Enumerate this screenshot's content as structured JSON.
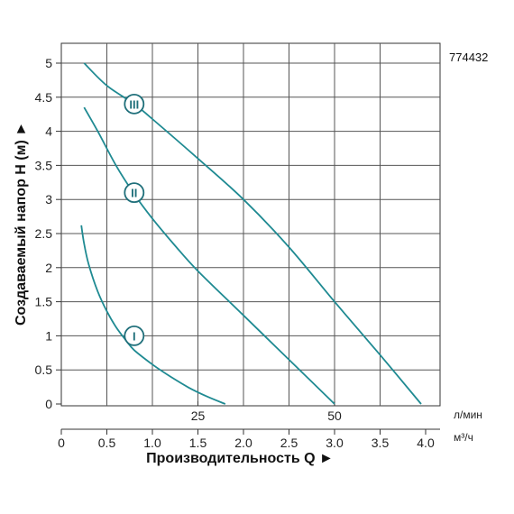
{
  "model_code": "774432",
  "chart_data": {
    "type": "line",
    "xlabel": "Производительность Q ►",
    "ylabel": "Создаваемый напор H (м) ►",
    "x_unit_primary": "м³/ч",
    "x_unit_secondary": "л/мин",
    "xlim": [
      0,
      4.0
    ],
    "ylim": [
      0,
      5
    ],
    "x_ticks": [
      "0",
      "0.5",
      "1.0",
      "1.5",
      "2.0",
      "2.5",
      "3.0",
      "3.5",
      "4.0"
    ],
    "y_ticks": [
      "0",
      "0.5",
      "1",
      "1.5",
      "2",
      "2.5",
      "3",
      "3.5",
      "4",
      "4.5",
      "5"
    ],
    "secondary_x_ticks": [
      {
        "value": 1.5,
        "label": "25"
      },
      {
        "value": 3.0,
        "label": "50"
      }
    ],
    "grid": true,
    "line_color": "#1f8a92",
    "marker_color": "#1f6f7a",
    "series": [
      {
        "name": "I",
        "x": [
          0.22,
          0.25,
          0.3,
          0.4,
          0.5,
          0.6,
          0.7,
          0.8,
          1.0,
          1.2,
          1.4,
          1.6,
          1.8
        ],
        "y": [
          2.62,
          2.35,
          2.05,
          1.65,
          1.36,
          1.13,
          0.95,
          0.79,
          0.58,
          0.4,
          0.24,
          0.11,
          0.0
        ],
        "label_at": [
          0.8,
          1.0
        ]
      },
      {
        "name": "II",
        "x": [
          0.25,
          0.4,
          0.6,
          0.8,
          1.0,
          1.25,
          1.5,
          2.0,
          2.5,
          3.0
        ],
        "y": [
          4.35,
          4.0,
          3.5,
          3.08,
          2.72,
          2.32,
          1.95,
          1.3,
          0.65,
          0.0
        ],
        "label_at": [
          0.8,
          3.1
        ]
      },
      {
        "name": "III",
        "x": [
          0.25,
          0.5,
          0.8,
          1.0,
          1.5,
          2.0,
          2.5,
          3.0,
          3.5,
          3.95
        ],
        "y": [
          5.0,
          4.67,
          4.4,
          4.18,
          3.6,
          3.0,
          2.3,
          1.5,
          0.72,
          0.0
        ],
        "label_at": [
          0.8,
          4.4
        ]
      }
    ]
  }
}
